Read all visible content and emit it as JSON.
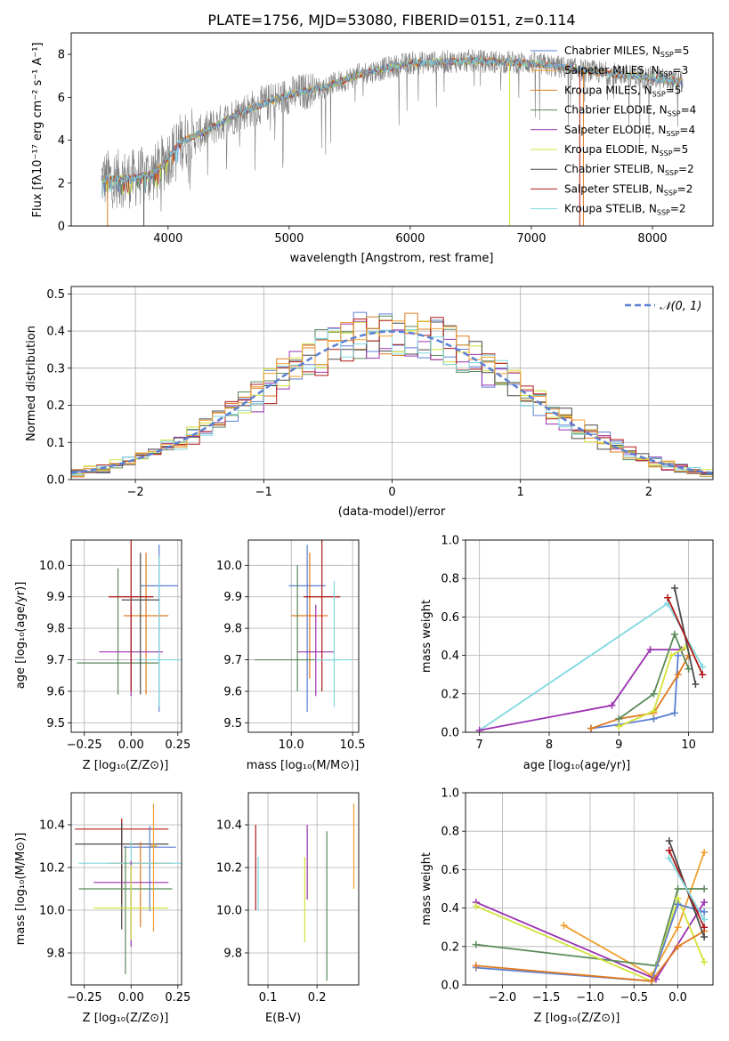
{
  "title": "PLATE=1756, MJD=53080, FIBERID=0151, z=0.114",
  "panels": {
    "spectrum": {
      "xlabel": "wavelength [Angstrom, rest frame]",
      "ylabel": "Flux [fλ10⁻¹⁷ erg cm⁻² s⁻¹ A⁻¹]",
      "xlim": [
        3200,
        8500
      ],
      "ylim": [
        0,
        9
      ],
      "xticks": [
        4000,
        5000,
        6000,
        7000,
        8000
      ],
      "yticks": [
        0,
        2,
        4,
        6,
        8
      ]
    },
    "residuals": {
      "xlabel": "(data-model)/error",
      "ylabel": "Normed distribution",
      "xlim": [
        -2.5,
        2.5
      ],
      "ylim": [
        0,
        0.52
      ],
      "xticks": [
        -2,
        -1,
        0,
        1,
        2
      ],
      "yticks": [
        0.0,
        0.1,
        0.2,
        0.3,
        0.4,
        0.5
      ],
      "gauss_label": "𝒩(0, 1)"
    },
    "age_Z": {
      "xlabel": "Z [log₁₀(Z/Z⊙)]",
      "ylabel": "age  [log₁₀(age/yr)]"
    },
    "age_mass": {
      "xlabel": "mass [log₁₀(M/M⊙)]"
    },
    "weight_age": {
      "xlabel": "age  [log₁₀(age/yr)]",
      "ylabel": "mass weight"
    },
    "mass_Z": {
      "xlabel": "Z [log₁₀(Z/Z⊙)]",
      "ylabel": "mass [log₁₀(M/M⊙)]"
    },
    "mass_ebv": {
      "xlabel": "E(B-V)"
    },
    "weight_Z": {
      "xlabel": "Z [log₁₀(Z/Z⊙)]",
      "ylabel": "mass weight"
    }
  },
  "legend": [
    {
      "label": "Chabrier MILES, N",
      "sub": "SSP",
      "tail": "=5",
      "color": "#5b7fd3"
    },
    {
      "label": "Salpeter MILES, N",
      "sub": "SSP",
      "tail": "=3",
      "color": "#f0a030"
    },
    {
      "label": "Kroupa MILES, N",
      "sub": "SSP",
      "tail": "=5",
      "color": "#e07a20"
    },
    {
      "label": "Chabrier ELODIE, N",
      "sub": "SSP",
      "tail": "=4",
      "color": "#5a8a5a"
    },
    {
      "label": "Salpeter ELODIE, N",
      "sub": "SSP",
      "tail": "=4",
      "color": "#9b30b0"
    },
    {
      "label": "Kroupa ELODIE, N",
      "sub": "SSP",
      "tail": "=5",
      "color": "#d4e23a"
    },
    {
      "label": "Chabrier STELIB, N",
      "sub": "SSP",
      "tail": "=2",
      "color": "#4a4a4a"
    },
    {
      "label": "Salpeter STELIB, N",
      "sub": "SSP",
      "tail": "=2",
      "color": "#b01818"
    },
    {
      "label": "Kroupa STELIB, N",
      "sub": "SSP",
      "tail": "=2",
      "color": "#80d8e0"
    }
  ],
  "chart_data": [
    {
      "type": "line",
      "title": "PLATE=1756, MJD=53080, FIBERID=0151, z=0.114",
      "xlabel": "wavelength [Angstrom, rest frame]",
      "ylabel": "Flux",
      "x_range": [
        3450,
        8250
      ],
      "continuum_knots": [
        [
          3450,
          2.2
        ],
        [
          3700,
          2.2
        ],
        [
          3900,
          2.5
        ],
        [
          4000,
          3.2
        ],
        [
          4100,
          3.9
        ],
        [
          4300,
          4.4
        ],
        [
          4600,
          5.3
        ],
        [
          5000,
          6.1
        ],
        [
          5300,
          6.5
        ],
        [
          5600,
          7.1
        ],
        [
          6000,
          7.6
        ],
        [
          6500,
          7.7
        ],
        [
          7000,
          7.6
        ],
        [
          7500,
          7.2
        ],
        [
          8000,
          6.9
        ],
        [
          8250,
          6.7
        ]
      ],
      "data_color": "#808080"
    },
    {
      "type": "line",
      "title": "",
      "xlabel": "(data-model)/error",
      "ylabel": "Normed distribution",
      "gauss": {
        "mu": 0,
        "sigma": 1,
        "color": "#5b7fd3"
      },
      "xlim": [
        -2.5,
        2.5
      ],
      "ylim": [
        0,
        0.52
      ],
      "hist_bin_width": 0.1
    },
    {
      "type": "scatter",
      "xlabel": "Z",
      "ylabel": "age",
      "xlim": [
        -0.32,
        0.27
      ],
      "ylim": [
        9.47,
        10.08
      ],
      "xticks": [
        -0.25,
        0,
        0.25
      ],
      "xticklabels": [
        "−0.25",
        "0.00",
        "0.25"
      ],
      "yticks": [
        9.5,
        9.6,
        9.7,
        9.8,
        9.9,
        10.0
      ],
      "yticklabels": [
        "9.5",
        "9.6",
        "9.7",
        "9.8",
        "9.9",
        "10.0"
      ],
      "points": [
        {
          "x": 0.15,
          "y": 9.935,
          "xerr": [
            0.1,
            0.1
          ],
          "yerr": [
            0.4,
            0.13
          ],
          "color": 0
        },
        {
          "x": 0.08,
          "y": 9.84,
          "xerr": [
            0.12,
            0.12
          ],
          "yerr": [
            0.25,
            0.2
          ],
          "color": 2
        },
        {
          "x": -0.07,
          "y": 9.69,
          "xerr": [
            0.22,
            0.22
          ],
          "yerr": [
            0.1,
            0.3
          ],
          "color": 3
        },
        {
          "x": 0.0,
          "y": 9.725,
          "xerr": [
            0.17,
            0.17
          ],
          "yerr": [
            0.14,
            0.15
          ],
          "color": 4
        },
        {
          "x": 0.0,
          "y": 9.9,
          "xerr": [
            0.12,
            0.12
          ],
          "yerr": [
            0.3,
            0.2
          ],
          "color": 7
        },
        {
          "x": 0.15,
          "y": 9.7,
          "xerr": [
            0.12,
            0.12
          ],
          "yerr": [
            0.15,
            0.33
          ],
          "color": 8
        },
        {
          "x": 0.05,
          "y": 9.89,
          "xerr": [
            0.1,
            0.1
          ],
          "yerr": [
            0.3,
            0.15
          ],
          "color": 6
        }
      ]
    },
    {
      "type": "scatter",
      "xlabel": "mass",
      "ylabel": "",
      "xlim": [
        9.65,
        10.55
      ],
      "ylim": [
        9.47,
        10.08
      ],
      "xticks": [
        10.0,
        10.5
      ],
      "xticklabels": [
        "10.0",
        "10.5"
      ],
      "yticks": [
        9.5,
        9.6,
        9.7,
        9.8,
        9.9,
        10.0
      ],
      "yticklabels": [
        "9.5",
        "9.6",
        "9.7",
        "9.8",
        "9.9",
        "10.0"
      ],
      "points": [
        {
          "x": 10.13,
          "y": 9.935,
          "xerr": [
            0.15,
            0.15
          ],
          "yerr": [
            0.4,
            0.13
          ],
          "color": 0
        },
        {
          "x": 10.15,
          "y": 9.84,
          "xerr": [
            0.15,
            0.15
          ],
          "yerr": [
            0.2,
            0.2
          ],
          "color": 2
        },
        {
          "x": 10.05,
          "y": 9.7,
          "xerr": [
            0.35,
            0.35
          ],
          "yerr": [
            0.1,
            0.3
          ],
          "color": 3
        },
        {
          "x": 10.2,
          "y": 9.725,
          "xerr": [
            0.15,
            0.15
          ],
          "yerr": [
            0.14,
            0.15
          ],
          "color": 4
        },
        {
          "x": 10.25,
          "y": 9.9,
          "xerr": [
            0.15,
            0.15
          ],
          "yerr": [
            0.3,
            0.2
          ],
          "color": 7
        },
        {
          "x": 10.35,
          "y": 9.7,
          "xerr": [
            0.15,
            0.15
          ],
          "yerr": [
            0.15,
            0.25
          ],
          "color": 8
        }
      ]
    },
    {
      "type": "line",
      "xlabel": "age",
      "ylabel": "mass weight",
      "xlim": [
        6.8,
        10.35
      ],
      "ylim": [
        0,
        1
      ],
      "xticks": [
        7,
        8,
        9,
        10
      ],
      "yticks": [
        0,
        0.2,
        0.4,
        0.6,
        0.8,
        1.0
      ],
      "series": [
        {
          "color": 8,
          "x": [
            7.0,
            9.7,
            10.2
          ],
          "y": [
            0.01,
            0.67,
            0.34
          ]
        },
        {
          "color": 4,
          "x": [
            7.0,
            8.9,
            9.45,
            9.9
          ],
          "y": [
            0.01,
            0.14,
            0.43,
            0.43
          ]
        },
        {
          "color": 0,
          "x": [
            8.6,
            9.0,
            9.5,
            9.8,
            9.85
          ],
          "y": [
            0.02,
            0.04,
            0.07,
            0.1,
            0.4
          ]
        },
        {
          "color": 2,
          "x": [
            8.6,
            9.0,
            9.5,
            9.85,
            10.0
          ],
          "y": [
            0.02,
            0.07,
            0.1,
            0.3,
            0.4
          ]
        },
        {
          "color": 3,
          "x": [
            9.0,
            9.5,
            9.8,
            10.0
          ],
          "y": [
            0.07,
            0.2,
            0.51,
            0.33
          ]
        },
        {
          "color": 5,
          "x": [
            9.0,
            9.5,
            9.75,
            9.95
          ],
          "y": [
            0.03,
            0.11,
            0.4,
            0.44
          ]
        },
        {
          "color": 6,
          "x": [
            9.8,
            10.1
          ],
          "y": [
            0.75,
            0.25
          ]
        },
        {
          "color": 7,
          "x": [
            9.7,
            10.2
          ],
          "y": [
            0.7,
            0.3
          ]
        }
      ]
    },
    {
      "type": "scatter",
      "xlabel": "Z",
      "ylabel": "mass",
      "xlim": [
        -0.32,
        0.27
      ],
      "ylim": [
        9.65,
        10.55
      ],
      "xticks": [
        -0.25,
        0,
        0.25
      ],
      "xticklabels": [
        "−0.25",
        "0.00",
        "0.25"
      ],
      "yticks": [
        9.8,
        10.0,
        10.2,
        10.4
      ],
      "yticklabels": [
        "9.8",
        "10.0",
        "10.2",
        "10.4"
      ],
      "points": [
        {
          "x": -0.05,
          "y": 10.38,
          "xerr": [
            0.25,
            0.25
          ],
          "yerr": [
            0.35,
            0.05
          ],
          "color": 7
        },
        {
          "x": -0.05,
          "y": 10.31,
          "xerr": [
            0.25,
            0.25
          ],
          "yerr": [
            0.4,
            0.1
          ],
          "color": 6
        },
        {
          "x": 0.1,
          "y": 10.295,
          "xerr": [
            0.14,
            0.14
          ],
          "yerr": [
            0.3,
            0.1
          ],
          "color": 0
        },
        {
          "x": 0.05,
          "y": 10.22,
          "xerr": [
            0.17,
            0.17
          ],
          "yerr": [
            0.3,
            0.1
          ],
          "color": 2
        },
        {
          "x": 0.0,
          "y": 10.22,
          "xerr": [
            0.28,
            0.28
          ],
          "yerr": [
            0.3,
            0.1
          ],
          "color": 8
        },
        {
          "x": 0.0,
          "y": 10.13,
          "xerr": [
            0.2,
            0.2
          ],
          "yerr": [
            0.3,
            0.1
          ],
          "color": 4
        },
        {
          "x": -0.03,
          "y": 10.1,
          "xerr": [
            0.25,
            0.25
          ],
          "yerr": [
            0.4,
            0.2
          ],
          "color": 3
        },
        {
          "x": 0.0,
          "y": 10.01,
          "xerr": [
            0.2,
            0.2
          ],
          "yerr": [
            0.15,
            0.2
          ],
          "color": 5
        },
        {
          "x": 0.12,
          "y": 10.3,
          "xerr": [
            0.02,
            0.02
          ],
          "yerr": [
            0.4,
            0.2
          ],
          "color": 1
        }
      ]
    },
    {
      "type": "scatter",
      "xlabel": "E(B-V)",
      "ylabel": "",
      "xlim": [
        0.06,
        0.285
      ],
      "ylim": [
        9.65,
        10.55
      ],
      "xticks": [
        0.1,
        0.2
      ],
      "xticklabels": [
        "0.1",
        "0.2"
      ],
      "yticks": [
        9.8,
        10.0,
        10.2,
        10.4
      ],
      "yticklabels": [
        "9.8",
        "10.0",
        "10.2",
        "10.4"
      ],
      "points": [
        {
          "x": 0.075,
          "y": 10.2,
          "yerr": [
            0.2,
            0.2
          ],
          "color": 7
        },
        {
          "x": 0.08,
          "y": 10.1,
          "yerr": [
            0.1,
            0.15
          ],
          "color": 8
        },
        {
          "x": 0.175,
          "y": 10.05,
          "yerr": [
            0.2,
            0.2
          ],
          "color": 5
        },
        {
          "x": 0.18,
          "y": 10.15,
          "yerr": [
            0.1,
            0.25
          ],
          "color": 4
        },
        {
          "x": 0.22,
          "y": 10.02,
          "yerr": [
            0.35,
            0.35
          ],
          "color": 3
        },
        {
          "x": 0.275,
          "y": 10.3,
          "yerr": [
            0.2,
            0.2
          ],
          "color": 1
        }
      ]
    },
    {
      "type": "line",
      "xlabel": "Z",
      "ylabel": "mass weight",
      "xlim": [
        -2.42,
        0.4
      ],
      "ylim": [
        0,
        1
      ],
      "xticks": [
        -2.0,
        -1.5,
        -1.0,
        -0.5,
        0.0
      ],
      "xticklabels": [
        "−2.0",
        "−1.5",
        "−1.0",
        "−0.5",
        "0.0"
      ],
      "yticks": [
        0,
        0.2,
        0.4,
        0.6,
        0.8,
        1.0
      ],
      "series": [
        {
          "color": 1,
          "x": [
            -1.3,
            -0.3,
            0.0,
            0.3
          ],
          "y": [
            0.31,
            0.05,
            0.3,
            0.69
          ]
        },
        {
          "color": 4,
          "x": [
            -2.3,
            -0.25,
            0.3
          ],
          "y": [
            0.43,
            0.03,
            0.43
          ]
        },
        {
          "color": 3,
          "x": [
            -2.3,
            -0.25,
            0.0,
            0.3
          ],
          "y": [
            0.21,
            0.1,
            0.5,
            0.5
          ]
        },
        {
          "color": 5,
          "x": [
            -2.3,
            -0.3,
            0.0,
            0.3
          ],
          "y": [
            0.41,
            0.02,
            0.45,
            0.12
          ]
        },
        {
          "color": 0,
          "x": [
            -2.3,
            -0.3,
            0.0,
            0.3
          ],
          "y": [
            0.09,
            0.02,
            0.42,
            0.38
          ]
        },
        {
          "color": 2,
          "x": [
            -2.3,
            -0.3,
            0.0,
            0.3
          ],
          "y": [
            0.1,
            0.02,
            0.2,
            0.28
          ]
        },
        {
          "color": 6,
          "x": [
            -0.1,
            0.3
          ],
          "y": [
            0.75,
            0.25
          ]
        },
        {
          "color": 7,
          "x": [
            -0.1,
            0.3
          ],
          "y": [
            0.7,
            0.3
          ]
        },
        {
          "color": 8,
          "x": [
            -0.1,
            0.3
          ],
          "y": [
            0.66,
            0.34
          ]
        }
      ]
    }
  ]
}
